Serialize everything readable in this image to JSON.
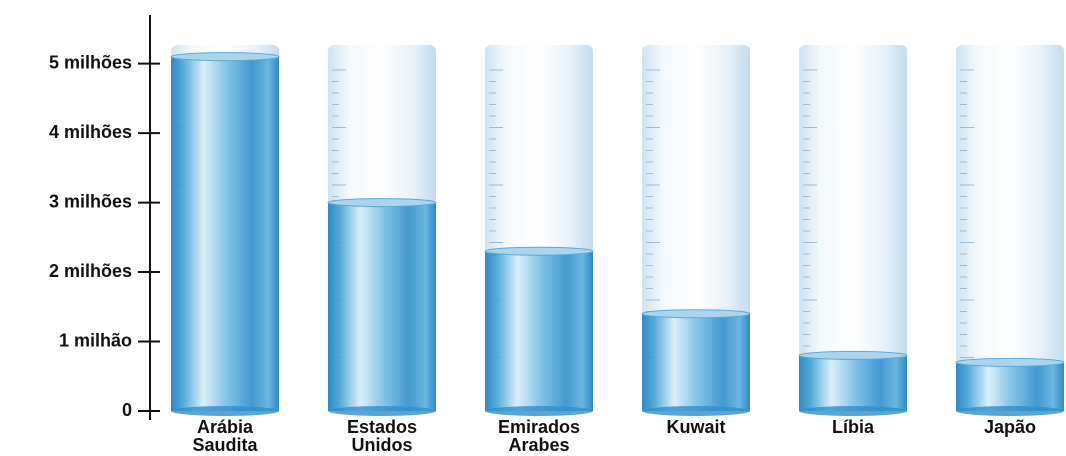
{
  "chart_data": {
    "type": "bar",
    "categories": [
      "Arábia Saudita",
      "Estados Unidos",
      "Emirados Arabes",
      "Kuwait",
      "Líbia",
      "Japão"
    ],
    "values": [
      5.1,
      3.0,
      2.3,
      1.4,
      0.8,
      0.7
    ],
    "color": "#2f8fcb",
    "ylim": [
      0,
      5.7
    ],
    "yticks": [
      0,
      {
        "value": 1,
        "label": "1 milhão"
      },
      {
        "value": 2,
        "label": "2 milhões"
      },
      {
        "value": 3,
        "label": "3 milhões"
      },
      {
        "value": 4,
        "label": "4 milhões"
      },
      {
        "value": 5,
        "label": "5 milhões"
      }
    ]
  }
}
